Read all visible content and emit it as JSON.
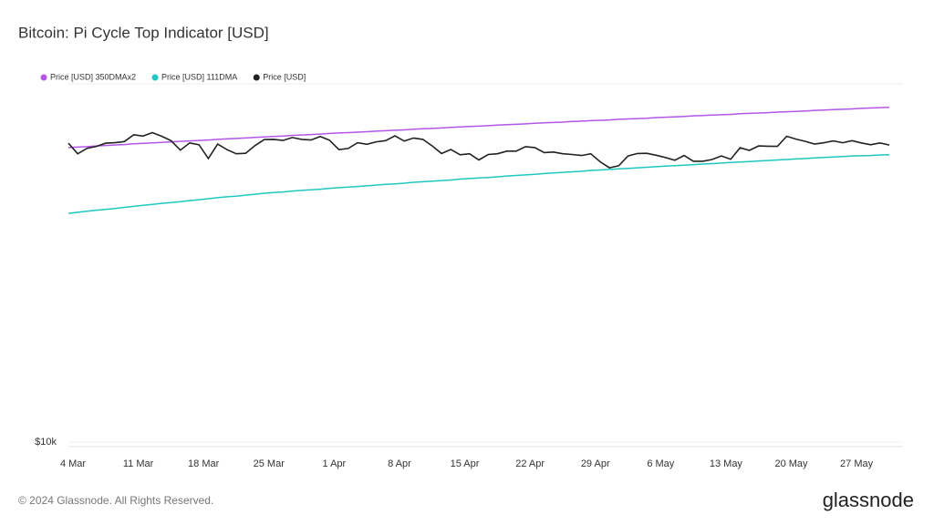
{
  "chart_data": {
    "type": "line",
    "title": "Bitcoin: Pi Cycle Top Indicator [USD]",
    "categories": [
      "4 Mar",
      null,
      null,
      null,
      null,
      null,
      null,
      "11 Mar",
      null,
      null,
      null,
      null,
      null,
      null,
      "18 Mar",
      null,
      null,
      null,
      null,
      null,
      null,
      "25 Mar",
      null,
      null,
      null,
      null,
      null,
      null,
      "1 Apr",
      null,
      null,
      null,
      null,
      null,
      null,
      "8 Apr",
      null,
      null,
      null,
      null,
      null,
      null,
      "15 Apr",
      null,
      null,
      null,
      null,
      null,
      null,
      "22 Apr",
      null,
      null,
      null,
      null,
      null,
      null,
      "29 Apr",
      null,
      null,
      null,
      null,
      null,
      null,
      "6 May",
      null,
      null,
      null,
      null,
      null,
      null,
      "13 May",
      null,
      null,
      null,
      null,
      null,
      null,
      "20 May",
      null,
      null,
      null,
      null,
      null,
      null,
      "27 May",
      null,
      null,
      null,
      null
    ],
    "series": [
      {
        "name": "Price [USD] 350DMAx2",
        "color": "#b456e6",
        "values": [
          66400,
          66600,
          66800,
          67100,
          67300,
          67500,
          67700,
          68000,
          68200,
          68400,
          68600,
          68900,
          69100,
          69300,
          69500,
          69700,
          70000,
          70200,
          70400,
          70600,
          70900,
          71100,
          71300,
          71500,
          71800,
          72000,
          72200,
          72400,
          72700,
          72900,
          73100,
          73300,
          73500,
          73800,
          74000,
          74200,
          74400,
          74700,
          74900,
          75100,
          75300,
          75600,
          75800,
          76000,
          76200,
          76400,
          76700,
          76900,
          77100,
          77300,
          77600,
          77800,
          78000,
          78200,
          78500,
          78700,
          78900,
          79100,
          79300,
          79600,
          79800,
          80000,
          80200,
          80500,
          80700,
          80900,
          81100,
          81400,
          81600,
          81800,
          82000,
          82200,
          82500,
          82700,
          82900,
          83100,
          83400,
          83600,
          83800,
          84000,
          84300,
          84500,
          84700,
          84900,
          85100,
          85400,
          85600,
          85800,
          86000
        ]
      },
      {
        "name": "Price [USD] 111DMA",
        "color": "#1fc8bf",
        "values": [
          43500,
          43800,
          44100,
          44400,
          44600,
          44900,
          45200,
          45500,
          45800,
          46100,
          46400,
          46600,
          46900,
          47200,
          47500,
          47800,
          48100,
          48400,
          48600,
          48900,
          49200,
          49500,
          49700,
          49900,
          50200,
          50400,
          50600,
          50800,
          51100,
          51300,
          51500,
          51700,
          51900,
          52200,
          52400,
          52600,
          52800,
          53100,
          53300,
          53500,
          53700,
          53900,
          54200,
          54400,
          54600,
          54800,
          55000,
          55300,
          55500,
          55700,
          55900,
          56200,
          56400,
          56600,
          56800,
          57000,
          57300,
          57500,
          57700,
          57900,
          58100,
          58300,
          58500,
          58700,
          58900,
          59100,
          59300,
          59500,
          59700,
          59900,
          60100,
          60300,
          60500,
          60700,
          60900,
          61100,
          61300,
          61500,
          61700,
          61900,
          62100,
          62300,
          62500,
          62700,
          62900,
          63000,
          63100,
          63300,
          63400
        ]
      },
      {
        "name": "Price [USD]",
        "color": "#222222",
        "values": [
          68300,
          63800,
          66100,
          66900,
          68300,
          68500,
          69000,
          72100,
          71500,
          73100,
          71400,
          69400,
          65300,
          68400,
          67600,
          61900,
          67900,
          65500,
          63800,
          64000,
          67200,
          69900,
          70000,
          69500,
          70800,
          70000,
          69700,
          71300,
          69600,
          65500,
          66000,
          68500,
          67800,
          68900,
          69400,
          71600,
          69200,
          70600,
          70000,
          67100,
          63900,
          65600,
          63400,
          63800,
          61300,
          63500,
          63800,
          64900,
          64900,
          66800,
          66400,
          64300,
          64500,
          63800,
          63500,
          63100,
          63800,
          60600,
          58300,
          59100,
          62900,
          63900,
          64000,
          63200,
          62300,
          61200,
          63100,
          60800,
          60800,
          61500,
          62900,
          61600,
          66300,
          65200,
          67100,
          67000,
          66900,
          71400,
          70100,
          69100,
          67900,
          68500,
          69300,
          68500,
          69400,
          68400,
          67600,
          68400,
          67500
        ]
      }
    ],
    "ylim": [
      10000,
      100000
    ],
    "yticks": [
      {
        "value": 10000,
        "label": "$10k"
      }
    ],
    "log_scale": true,
    "grid": true
  },
  "footer": {
    "copyright": "© 2024 Glassnode. All Rights Reserved.",
    "brand": "glassnode"
  }
}
